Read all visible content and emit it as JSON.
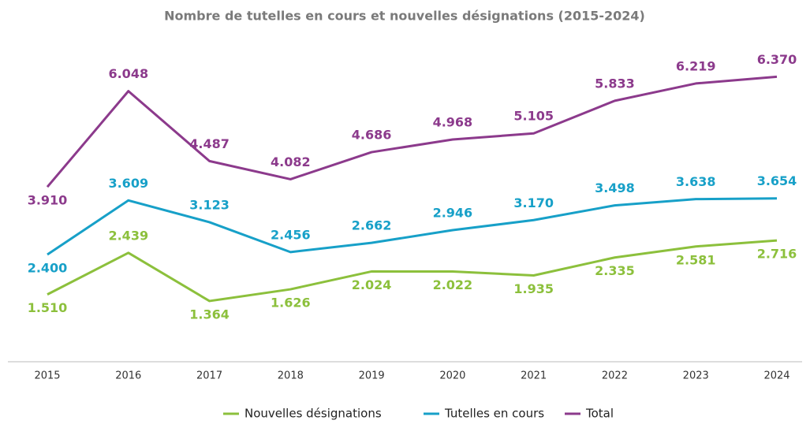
{
  "chart_data": {
    "type": "line",
    "title": "Nombre de tutelles en cours et nouvelles désignations (2015-2024)",
    "categories": [
      "2015",
      "2016",
      "2017",
      "2018",
      "2019",
      "2020",
      "2021",
      "2022",
      "2023",
      "2024"
    ],
    "series": [
      {
        "name": "Nouvelles désignations",
        "color": "#8cc03c",
        "values": [
          1510,
          2439,
          1364,
          1626,
          2024,
          2022,
          1935,
          2335,
          2581,
          2716
        ],
        "value_labels": [
          "1.510",
          "2.439",
          "1.364",
          "1.626",
          "2.024",
          "2.022",
          "1.935",
          "2.335",
          "2.581",
          "2.716"
        ]
      },
      {
        "name": "Tutelles en cours",
        "color": "#17a0c8",
        "values": [
          2400,
          3609,
          3123,
          2456,
          2662,
          2946,
          3170,
          3498,
          3638,
          3654
        ],
        "value_labels": [
          "2.400",
          "3.609",
          "3.123",
          "2.456",
          "2.662",
          "2.946",
          "3.170",
          "3.498",
          "3.638",
          "3.654"
        ]
      },
      {
        "name": "Total",
        "color": "#8c3a8c",
        "values": [
          3910,
          6048,
          4487,
          4082,
          4686,
          4968,
          5105,
          5833,
          6219,
          6370
        ],
        "value_labels": [
          "3.910",
          "6.048",
          "4.487",
          "4.082",
          "4.686",
          "4.968",
          "5.105",
          "5.833",
          "6.219",
          "6.370"
        ]
      }
    ],
    "ylim": [
      0,
      7000
    ],
    "legend": "bottom"
  }
}
